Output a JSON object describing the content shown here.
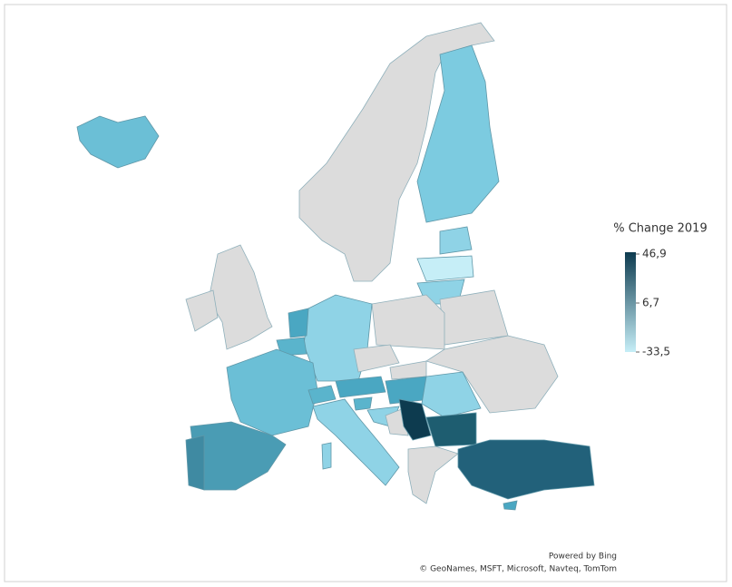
{
  "legend": {
    "title": "% Change 2019",
    "ticks": [
      {
        "value": 46.9,
        "label": "46,9"
      },
      {
        "value": 6.7,
        "label": "6,7"
      },
      {
        "value": -33.5,
        "label": "-33,5"
      }
    ],
    "colors": [
      "#c6eef7",
      "#0d3b4f"
    ]
  },
  "attribution": {
    "line1": "Powered by Bing",
    "line2": "© GeoNames, MSFT, Microsoft, Navteq, TomTom"
  }
}
